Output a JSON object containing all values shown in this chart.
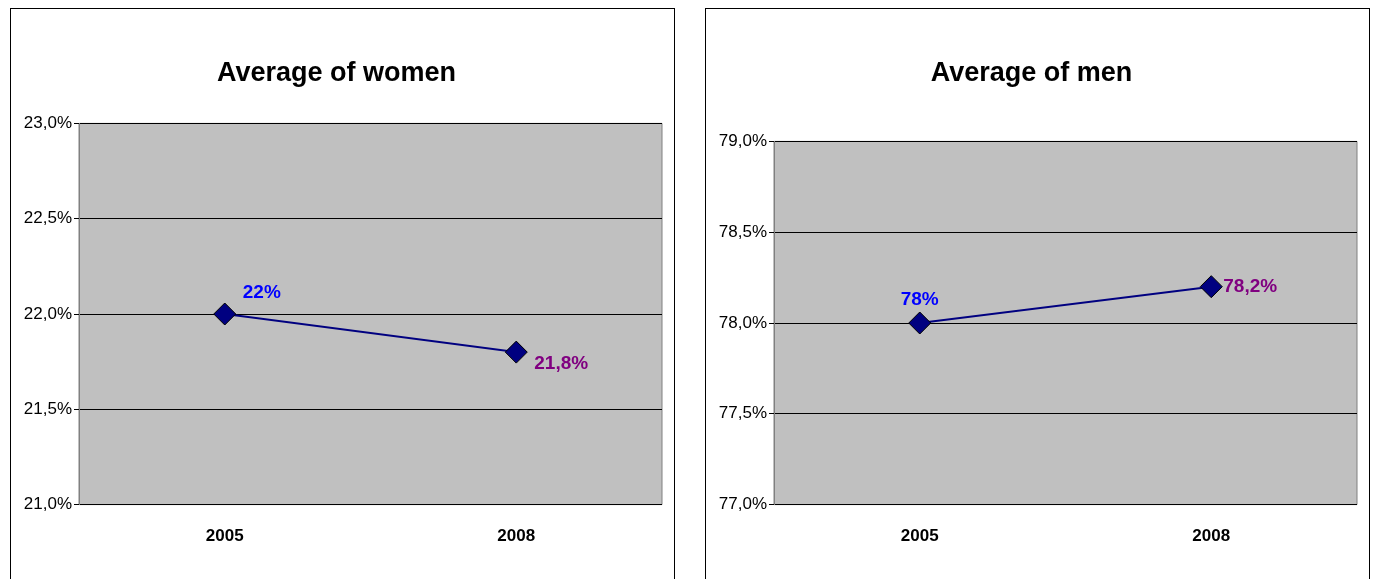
{
  "chart_data": [
    {
      "type": "line",
      "title": "Average of women",
      "categories": [
        "2005",
        "2008"
      ],
      "series": [
        {
          "color": "#000080",
          "values": [
            22.0,
            21.8
          ],
          "value_labels": [
            "22%",
            "21,8%"
          ]
        }
      ],
      "ylim": [
        21,
        23
      ],
      "yticks": [
        {
          "value": 21,
          "label": "21,0%"
        },
        {
          "value": 21.5,
          "label": "21,5%"
        },
        {
          "value": 22,
          "label": "22,0%"
        },
        {
          "value": 22.5,
          "label": "22,5%"
        },
        {
          "value": 23,
          "label": "23,0%"
        }
      ],
      "grid": "y",
      "marker": "diamond",
      "line_style": "solid",
      "legend": false
    },
    {
      "type": "line",
      "title": "Average of men",
      "categories": [
        "2005",
        "2008"
      ],
      "series": [
        {
          "color": "#000080",
          "values": [
            78.0,
            78.2
          ],
          "value_labels": [
            "78%",
            "78,2%"
          ]
        }
      ],
      "ylim": [
        77,
        79
      ],
      "yticks": [
        {
          "value": 77,
          "label": "77,0%"
        },
        {
          "value": 77.5,
          "label": "77,5%"
        },
        {
          "value": 78,
          "label": "78,0%"
        },
        {
          "value": 78.5,
          "label": "78,5%"
        },
        {
          "value": 79,
          "label": "79,0%"
        }
      ],
      "grid": "y",
      "marker": "diamond",
      "line_style": "solid",
      "legend": false
    }
  ]
}
